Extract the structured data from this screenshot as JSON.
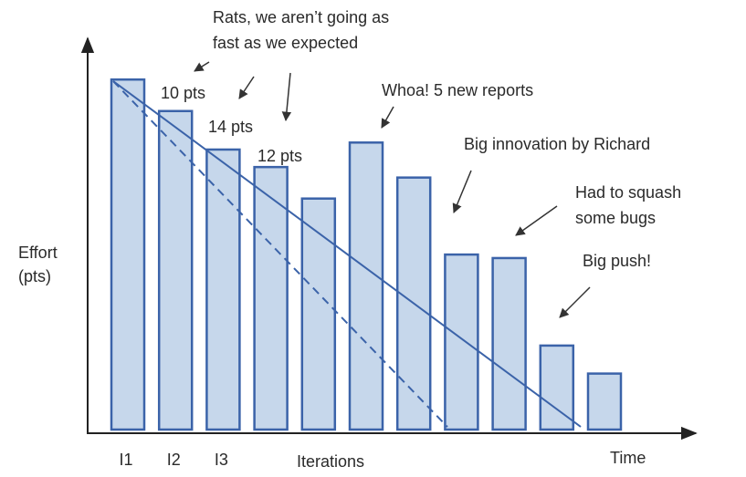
{
  "chart_data": {
    "type": "bar",
    "categories": [
      "I1",
      "I2",
      "I3",
      null,
      null,
      null,
      null,
      null,
      null,
      null,
      null
    ],
    "values": [
      100,
      91,
      80,
      75,
      66,
      82,
      72,
      50,
      49,
      24,
      16
    ],
    "color": "#c6d7eb",
    "edge_color": "#3b63a9",
    "ylim": [
      0,
      111
    ],
    "ylabel": [
      "Effort",
      "(pts)"
    ],
    "xlabel": "Iterations",
    "x_end_label": "Time",
    "annotations": [
      {
        "lines": [
          "Rats, we aren’t going as",
          "fast as we expected"
        ]
      },
      {
        "lines": [
          "10 pts"
        ]
      },
      {
        "lines": [
          "14 pts"
        ]
      },
      {
        "lines": [
          "12 pts"
        ]
      },
      {
        "lines": [
          "Whoa! 5 new reports"
        ]
      },
      {
        "lines": [
          "Big innovation by Richard"
        ]
      },
      {
        "lines": [
          "Had to squash",
          "some bugs"
        ]
      },
      {
        "lines": [
          "Big push!"
        ]
      }
    ]
  }
}
